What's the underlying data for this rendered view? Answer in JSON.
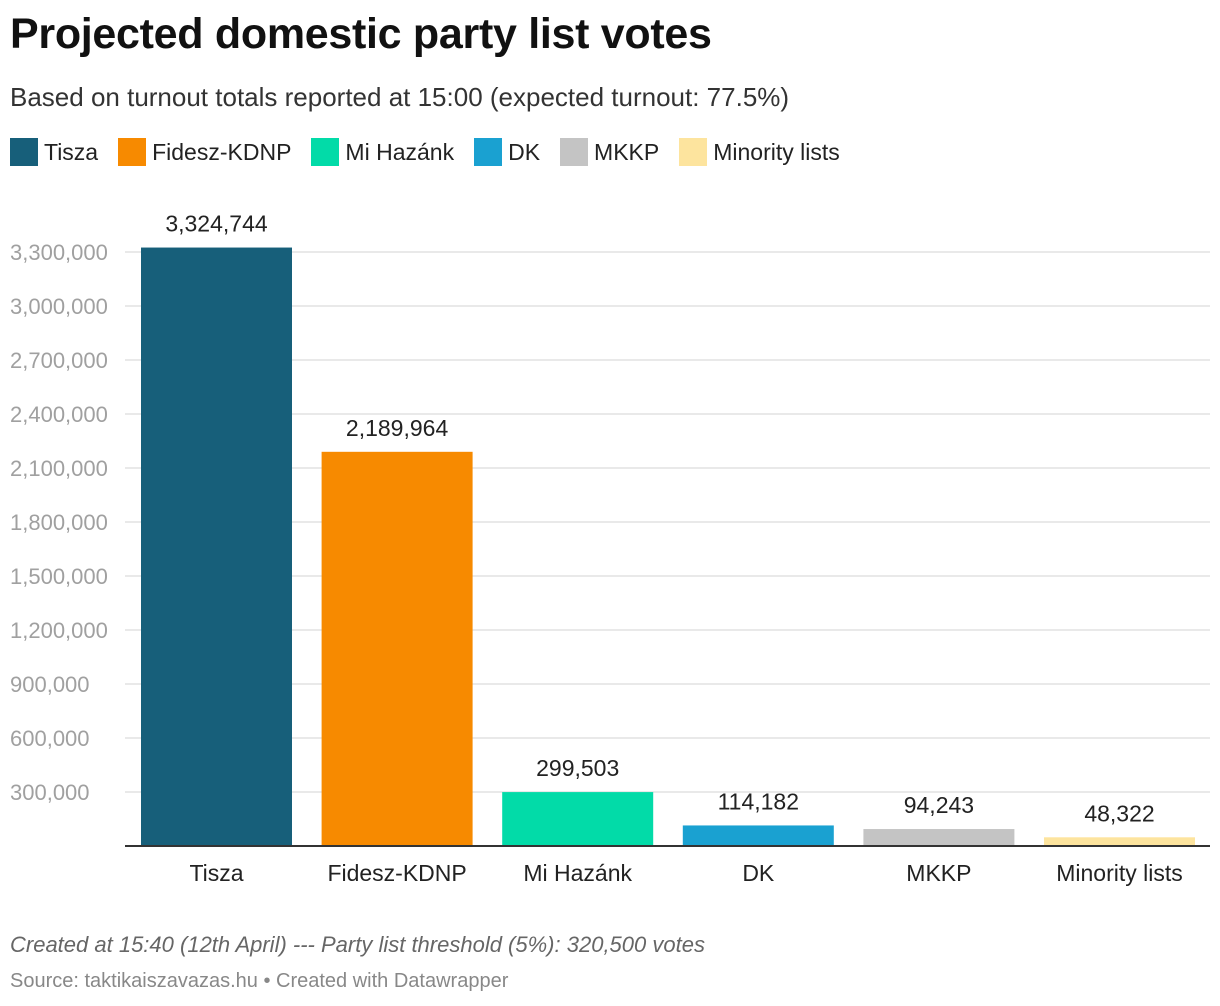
{
  "header": {
    "title": "Projected domestic party list votes",
    "subtitle": "Based on turnout totals reported at 15:00 (expected turnout: 77.5%)"
  },
  "legend": [
    {
      "label": "Tisza",
      "color": "#175f7a"
    },
    {
      "label": "Fidesz-KDNP",
      "color": "#f78a00"
    },
    {
      "label": "Mi Hazánk",
      "color": "#02dba8"
    },
    {
      "label": "DK",
      "color": "#1aa1d1"
    },
    {
      "label": "MKKP",
      "color": "#c4c4c4"
    },
    {
      "label": "Minority lists",
      "color": "#fde49e"
    }
  ],
  "chart_data": {
    "type": "bar",
    "categories": [
      "Tisza",
      "Fidesz-KDNP",
      "Mi Hazánk",
      "DK",
      "MKKP",
      "Minority lists"
    ],
    "values": [
      3324744,
      2189964,
      299503,
      114182,
      94243,
      48322
    ],
    "value_labels": [
      "3,324,744",
      "2,189,964",
      "299,503",
      "114,182",
      "94,243",
      "48,322"
    ],
    "colors": [
      "#175f7a",
      "#f78a00",
      "#02dba8",
      "#1aa1d1",
      "#c4c4c4",
      "#fde49e"
    ],
    "yticks": [
      300000,
      600000,
      900000,
      1200000,
      1500000,
      1800000,
      2100000,
      2400000,
      2700000,
      3000000,
      3300000
    ],
    "ytick_labels": [
      "300,000",
      "600,000",
      "900,000",
      "1,200,000",
      "1,500,000",
      "1,800,000",
      "2,100,000",
      "2,400,000",
      "2,700,000",
      "3,000,000",
      "3,300,000"
    ],
    "ylim": [
      0,
      3300000
    ],
    "grid": true,
    "legend_position": "top-left"
  },
  "footer": {
    "note": "Created at 15:40 (12th April) --- Party list threshold (5%): 320,500 votes",
    "source": "Source: taktikaiszavazas.hu • Created with Datawrapper"
  }
}
